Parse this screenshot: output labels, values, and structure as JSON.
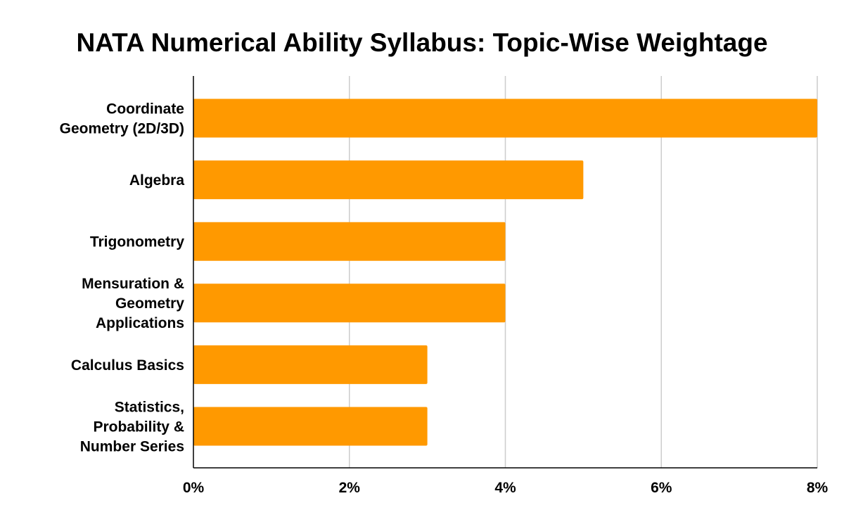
{
  "chart_data": {
    "type": "bar",
    "orientation": "horizontal",
    "title": "NATA Numerical Ability Syllabus: Topic-Wise Weightage",
    "xlabel": "",
    "ylabel": "",
    "categories": [
      "Coordinate Geometry (2D/3D)",
      "Algebra",
      "Trigonometry",
      "Mensuration & Geometry Applications",
      "Calculus Basics",
      "Statistics, Probability & Number Series"
    ],
    "category_lines": [
      [
        "Coordinate",
        "Geometry (2D/3D)"
      ],
      [
        "Algebra"
      ],
      [
        "Trigonometry"
      ],
      [
        "Mensuration &",
        "Geometry",
        "Applications"
      ],
      [
        "Calculus Basics"
      ],
      [
        "Statistics,",
        "Probability &",
        "Number Series"
      ]
    ],
    "series": [
      {
        "values": [
          8,
          5,
          4,
          4,
          3,
          3
        ]
      }
    ],
    "value_unit": "%",
    "xlim": [
      0,
      8
    ],
    "ticks": [
      {
        "value": 0,
        "label": "0%"
      },
      {
        "value": 2,
        "label": "2%"
      },
      {
        "value": 4,
        "label": "4%"
      },
      {
        "value": 6,
        "label": "6%"
      },
      {
        "value": 8,
        "label": "8%"
      }
    ],
    "grid": true,
    "legend": "none",
    "colors": {
      "bar": "#ff9900",
      "grid": "#cccccc",
      "axis": "#000000",
      "text": "#000000"
    }
  }
}
